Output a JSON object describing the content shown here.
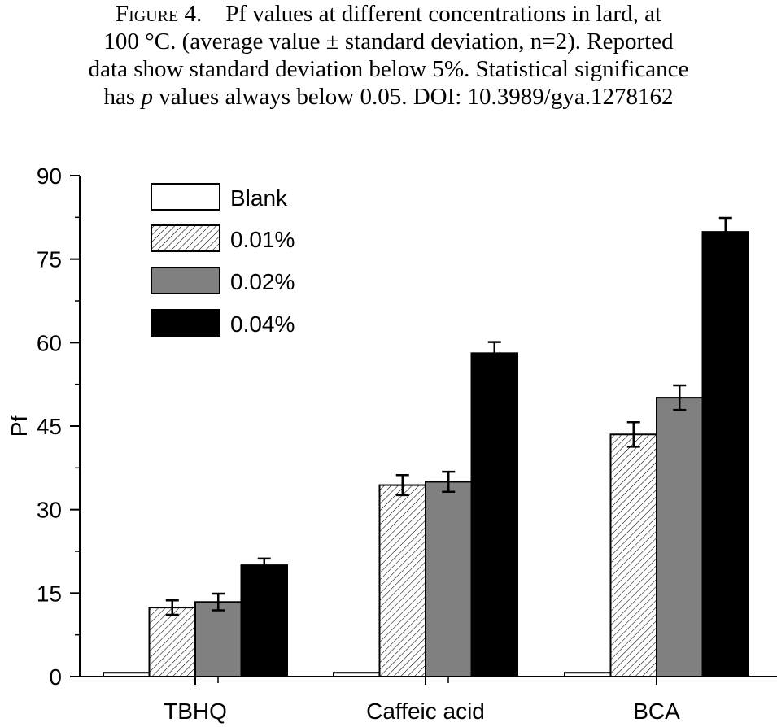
{
  "caption": {
    "figure_label": "Figure 4.",
    "line1_rest": "Pf values at different concentrations in lard, at",
    "line2": "100 °C. (average value ± standard deviation, n=2). Reported",
    "line3": "data show standard deviation below 5%. Statistical significance",
    "line4_pre": "has ",
    "line4_italic": "p",
    "line4_post": " values always below 0.05. DOI: 10.3989/gya.1278162"
  },
  "colors": {
    "blank": "#ffffff",
    "c001_hatch": "#000000",
    "c002": "#808080",
    "c004": "#000000"
  },
  "chart_data": {
    "type": "bar",
    "categories": [
      "TBHQ",
      "Caffeic acid",
      "BCA"
    ],
    "ylabel": "Pf",
    "xlabel": "",
    "ylim": [
      0,
      90
    ],
    "yticks": [
      0,
      15,
      30,
      45,
      60,
      75,
      90
    ],
    "legend_position": "top-left",
    "series": [
      {
        "name": "Blank",
        "fill": "white",
        "values": [
          0.7,
          0.7,
          0.7
        ],
        "errors": [
          0,
          0,
          0
        ]
      },
      {
        "name": "0.01%",
        "fill": "hatched",
        "values": [
          12.4,
          34.4,
          43.5
        ],
        "errors": [
          1.3,
          1.8,
          2.2
        ]
      },
      {
        "name": "0.02%",
        "fill": "gray",
        "values": [
          13.4,
          35.0,
          50.1
        ],
        "errors": [
          1.5,
          1.8,
          2.2
        ]
      },
      {
        "name": "0.04%",
        "fill": "black",
        "values": [
          20.0,
          58.1,
          79.9
        ],
        "errors": [
          1.2,
          2.0,
          2.5
        ]
      }
    ]
  }
}
